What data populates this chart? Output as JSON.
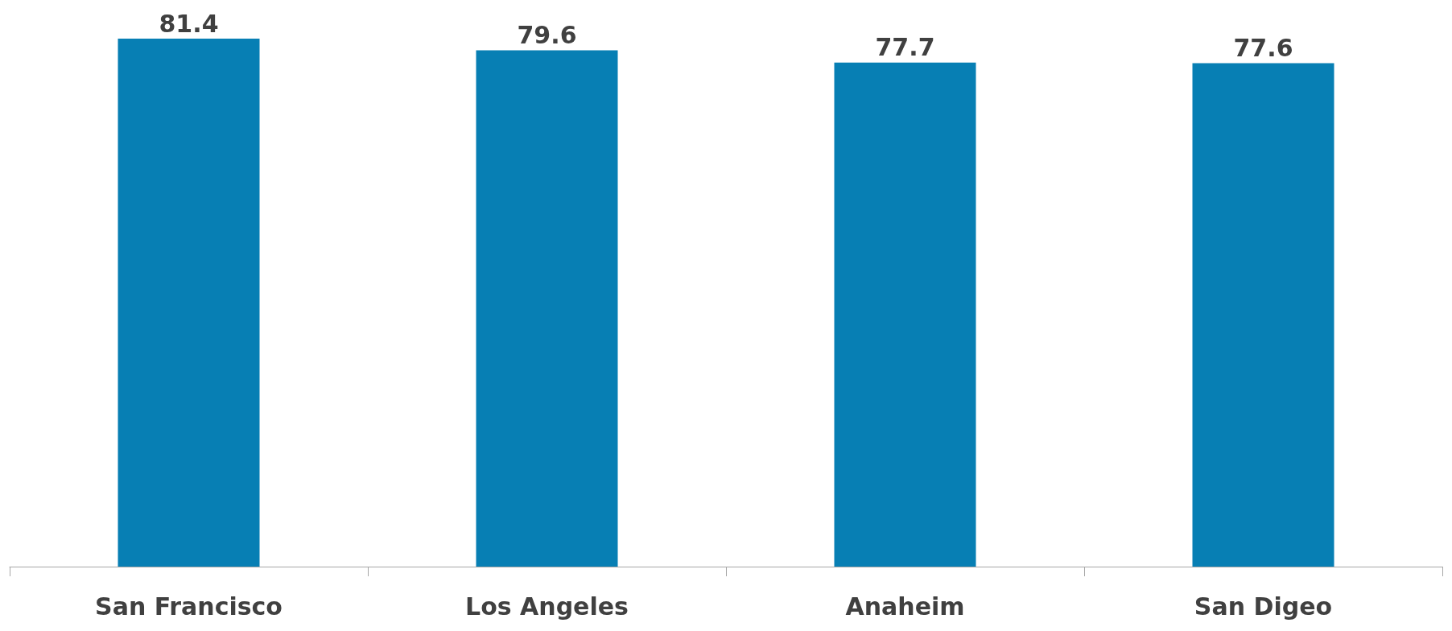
{
  "chart_data": {
    "type": "bar",
    "categories": [
      "San Francisco",
      "Los Angeles",
      "Anaheim",
      "San Digeo"
    ],
    "values": [
      81.4,
      79.6,
      77.7,
      77.6
    ],
    "color": "#077fb4",
    "data_labels": true
  }
}
